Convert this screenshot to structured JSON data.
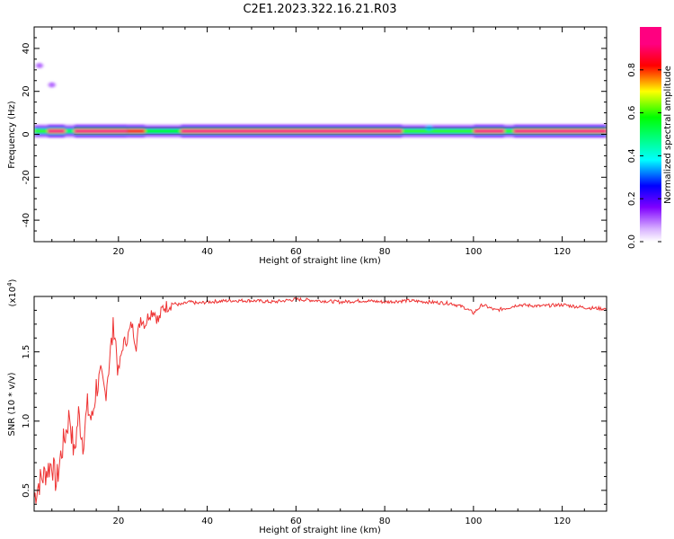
{
  "title": "C2E1.2023.322.16.21.R03",
  "colors": {
    "signal": "#ee3333",
    "line": "#000000",
    "background": "#ffffff"
  },
  "chart_data": [
    {
      "type": "heatmap",
      "xlabel": "Height of straight line (km)",
      "ylabel": "Frequency (Hz)",
      "xlim": [
        1,
        130
      ],
      "ylim": [
        -50,
        50
      ],
      "x_ticks": [
        20,
        40,
        60,
        80,
        100,
        120
      ],
      "y_ticks": [
        40,
        20,
        0,
        -20,
        -40
      ],
      "y_tick_labels": [
        "40",
        "20",
        "0",
        "-20",
        "-40"
      ],
      "colorbar": {
        "label": "Normalized spectral amplitude",
        "range": [
          0,
          1
        ],
        "ticks": [
          0.0,
          0.2,
          0.4,
          0.6,
          0.8
        ],
        "tick_labels": [
          "0.0",
          "0.2",
          "0.4",
          "0.6",
          "0.8"
        ],
        "colormap": "rainbow (white-violet-blue-cyan-green-yellow-red-magenta)"
      },
      "band": {
        "center_freq_hz": 1.5,
        "core_halfwidth_hz": 1,
        "halo_halfwidth_hz": 3,
        "segments": [
          {
            "x": [
              1,
              4
            ],
            "peak": 0.6
          },
          {
            "x": [
              4,
              8
            ],
            "peak": 0.95
          },
          {
            "x": [
              8,
              10
            ],
            "peak": 0.5
          },
          {
            "x": [
              10,
              22
            ],
            "peak": 0.95
          },
          {
            "x": [
              22,
              26
            ],
            "peak": 0.85
          },
          {
            "x": [
              26,
              34
            ],
            "peak": 0.55
          },
          {
            "x": [
              34,
              84
            ],
            "peak": 0.95
          },
          {
            "x": [
              84,
              100
            ],
            "peak": 0.6
          },
          {
            "x": [
              100,
              107
            ],
            "peak": 0.95
          },
          {
            "x": [
              107,
              109
            ],
            "peak": 0.6
          },
          {
            "x": [
              109,
              130
            ],
            "peak": 0.95
          }
        ],
        "blobs": [
          {
            "x": 2.2,
            "f": 32,
            "value": 0.1
          },
          {
            "x": 5,
            "f": 23,
            "value": 0.1
          },
          {
            "x": 90,
            "f": 3,
            "value": 0.35
          }
        ]
      }
    },
    {
      "type": "line",
      "xlabel": "Height of straight line (km)",
      "ylabel": "SNR (10 * v/v)",
      "y_multiplier_label": "(x10",
      "y_multiplier_exp": "4",
      "y_multiplier_close": ")",
      "xlim": [
        1,
        130
      ],
      "ylim": [
        0.35,
        1.9
      ],
      "x_ticks": [
        20,
        40,
        60,
        80,
        100,
        120
      ],
      "y_ticks": [
        0.5,
        1.0,
        1.5
      ],
      "y_tick_labels": [
        "0.5",
        "1.0",
        "1.5"
      ],
      "series": [
        {
          "x": [
            1,
            2,
            3,
            4,
            5,
            6,
            7,
            8,
            9,
            10,
            11,
            12,
            13,
            14,
            15,
            16,
            17,
            18,
            19,
            20,
            21,
            22,
            23,
            24,
            25,
            26,
            27,
            28,
            29,
            30,
            31,
            32,
            34,
            36,
            38,
            40,
            45,
            50,
            55,
            60,
            65,
            70,
            75,
            80,
            85,
            90,
            95,
            98,
            100,
            102,
            105,
            108,
            110,
            115,
            120,
            125,
            130
          ],
          "y": [
            0.45,
            0.55,
            0.6,
            0.65,
            0.7,
            0.55,
            0.75,
            0.9,
            1.05,
            0.75,
            1.05,
            0.85,
            1.1,
            1.0,
            1.25,
            1.3,
            1.2,
            1.45,
            1.7,
            1.35,
            1.55,
            1.6,
            1.7,
            1.55,
            1.75,
            1.7,
            1.78,
            1.8,
            1.72,
            1.82,
            1.83,
            1.85,
            1.84,
            1.86,
            1.85,
            1.86,
            1.87,
            1.87,
            1.86,
            1.88,
            1.87,
            1.86,
            1.87,
            1.86,
            1.87,
            1.86,
            1.85,
            1.82,
            1.78,
            1.84,
            1.8,
            1.82,
            1.84,
            1.83,
            1.84,
            1.82,
            1.81
          ]
        }
      ]
    }
  ]
}
